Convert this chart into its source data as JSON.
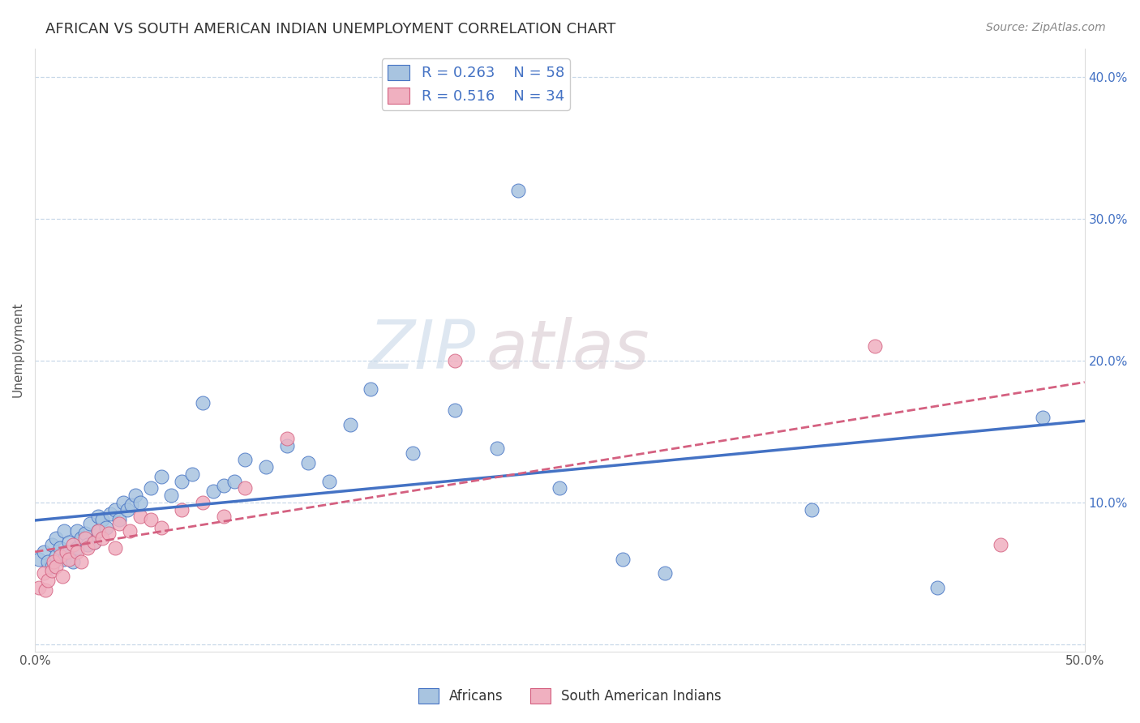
{
  "title": "AFRICAN VS SOUTH AMERICAN INDIAN UNEMPLOYMENT CORRELATION CHART",
  "source": "Source: ZipAtlas.com",
  "ylabel": "Unemployment",
  "watermark_zip": "ZIP",
  "watermark_atlas": "atlas",
  "xlim": [
    0.0,
    0.5
  ],
  "ylim": [
    -0.005,
    0.42
  ],
  "yticks": [
    0.0,
    0.1,
    0.2,
    0.3,
    0.4
  ],
  "ytick_labels_right": [
    "",
    "10.0%",
    "20.0%",
    "30.0%",
    "40.0%"
  ],
  "xticks": [
    0.0,
    0.1,
    0.2,
    0.3,
    0.4,
    0.5
  ],
  "xtick_labels": [
    "0.0%",
    "",
    "",
    "",
    "",
    "50.0%"
  ],
  "legend_r1": "R = 0.263",
  "legend_n1": "N = 58",
  "legend_r2": "R = 0.516",
  "legend_n2": "N = 34",
  "africans_color": "#a8c4e0",
  "south_american_color": "#f0b0c0",
  "trend_african_color": "#4472c4",
  "trend_sa_color": "#d46080",
  "background_color": "#ffffff",
  "grid_color": "#c8d8e8",
  "africans_x": [
    0.002,
    0.004,
    0.006,
    0.008,
    0.008,
    0.01,
    0.01,
    0.012,
    0.014,
    0.014,
    0.016,
    0.016,
    0.018,
    0.02,
    0.02,
    0.022,
    0.024,
    0.025,
    0.026,
    0.028,
    0.03,
    0.03,
    0.032,
    0.034,
    0.036,
    0.038,
    0.04,
    0.042,
    0.044,
    0.046,
    0.048,
    0.05,
    0.055,
    0.06,
    0.065,
    0.07,
    0.075,
    0.08,
    0.085,
    0.09,
    0.095,
    0.1,
    0.11,
    0.12,
    0.13,
    0.14,
    0.15,
    0.16,
    0.18,
    0.2,
    0.22,
    0.23,
    0.25,
    0.28,
    0.3,
    0.37,
    0.43,
    0.48
  ],
  "africans_y": [
    0.06,
    0.065,
    0.058,
    0.055,
    0.07,
    0.062,
    0.075,
    0.068,
    0.06,
    0.08,
    0.065,
    0.072,
    0.058,
    0.068,
    0.08,
    0.075,
    0.078,
    0.07,
    0.085,
    0.072,
    0.08,
    0.09,
    0.088,
    0.082,
    0.092,
    0.095,
    0.088,
    0.1,
    0.095,
    0.098,
    0.105,
    0.1,
    0.11,
    0.118,
    0.105,
    0.115,
    0.12,
    0.17,
    0.108,
    0.112,
    0.115,
    0.13,
    0.125,
    0.14,
    0.128,
    0.115,
    0.155,
    0.18,
    0.135,
    0.165,
    0.138,
    0.32,
    0.11,
    0.06,
    0.05,
    0.095,
    0.04,
    0.16
  ],
  "sa_x": [
    0.002,
    0.004,
    0.005,
    0.006,
    0.008,
    0.009,
    0.01,
    0.012,
    0.013,
    0.015,
    0.016,
    0.018,
    0.02,
    0.022,
    0.024,
    0.025,
    0.028,
    0.03,
    0.032,
    0.035,
    0.038,
    0.04,
    0.045,
    0.05,
    0.055,
    0.06,
    0.07,
    0.08,
    0.09,
    0.1,
    0.12,
    0.2,
    0.4,
    0.46
  ],
  "sa_y": [
    0.04,
    0.05,
    0.038,
    0.045,
    0.052,
    0.058,
    0.055,
    0.062,
    0.048,
    0.065,
    0.06,
    0.07,
    0.065,
    0.058,
    0.075,
    0.068,
    0.072,
    0.08,
    0.075,
    0.078,
    0.068,
    0.085,
    0.08,
    0.09,
    0.088,
    0.082,
    0.095,
    0.1,
    0.09,
    0.11,
    0.145,
    0.2,
    0.21,
    0.07
  ]
}
